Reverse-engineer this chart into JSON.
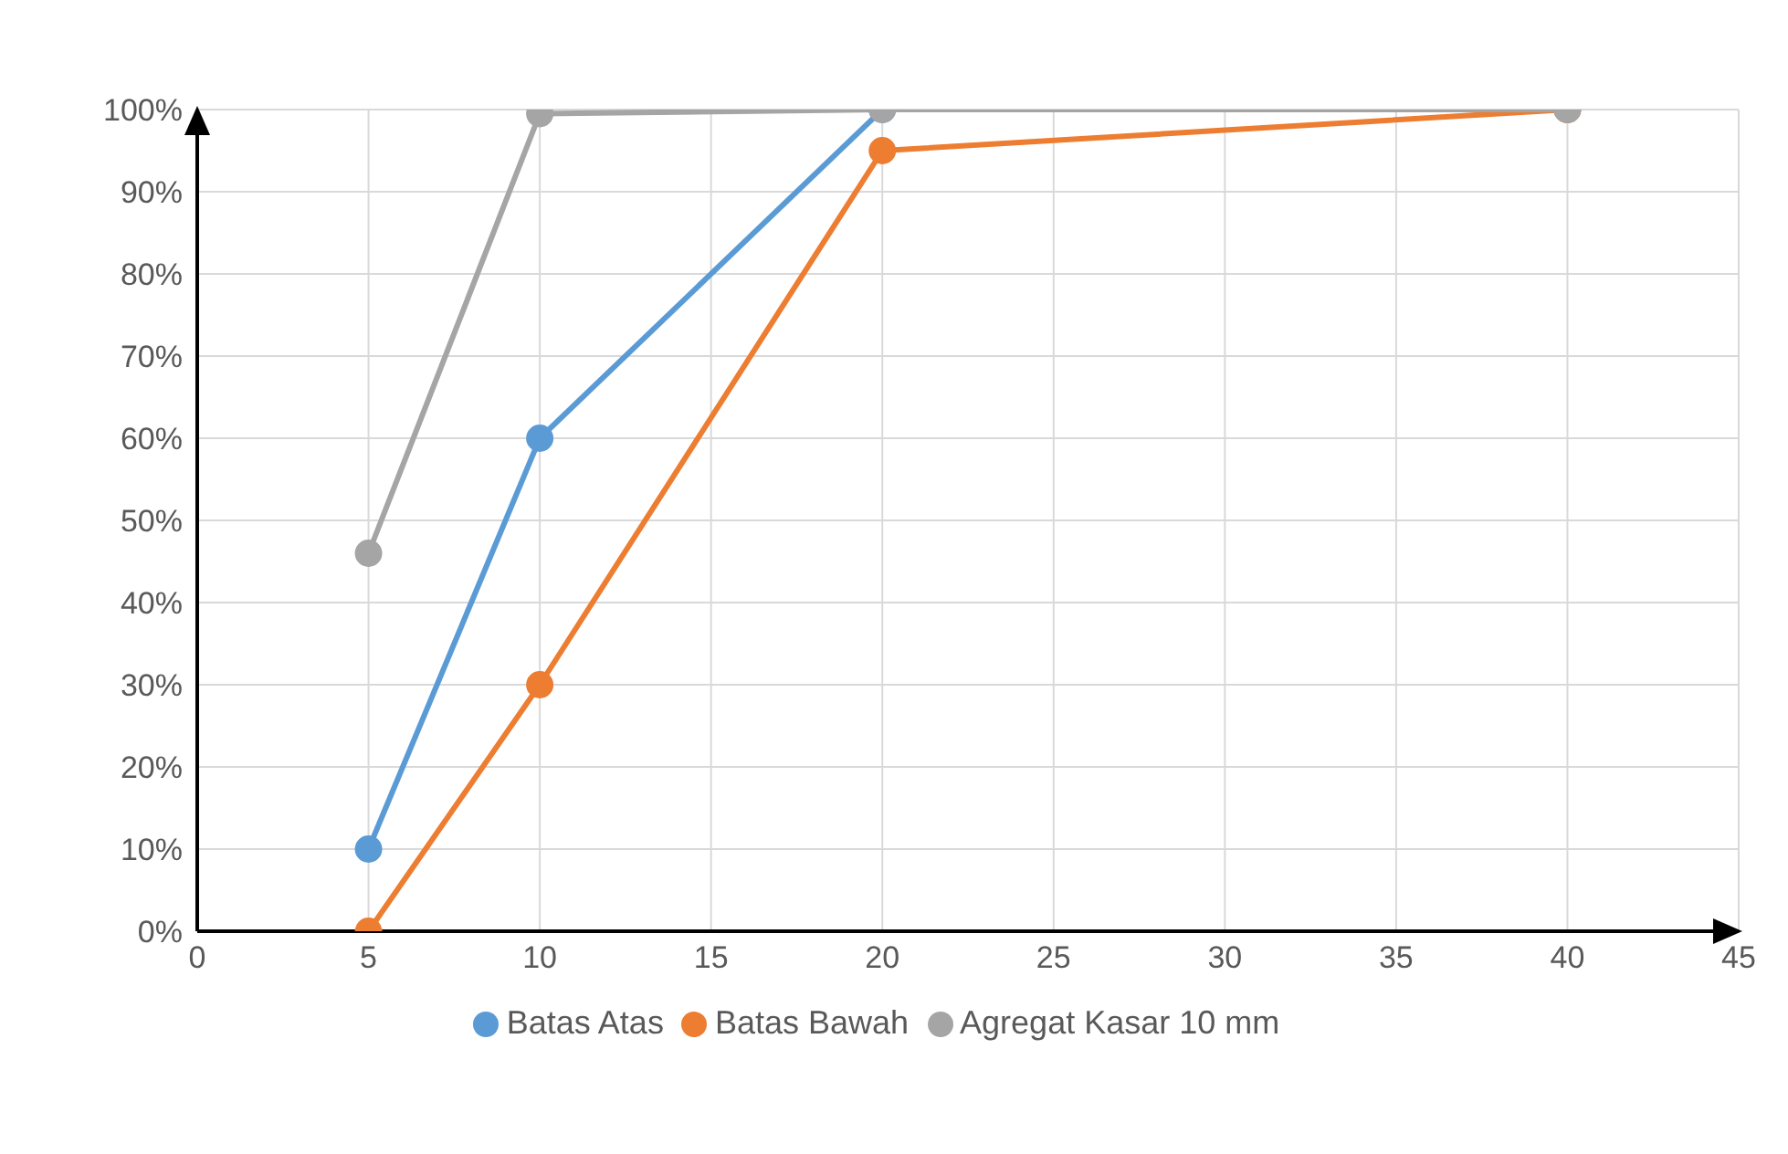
{
  "chart_data": {
    "type": "line",
    "x": [
      5,
      10,
      20,
      40
    ],
    "series": [
      {
        "name": "Batas Atas",
        "color": "#5b9bd5",
        "values": [
          10,
          60,
          100,
          100
        ]
      },
      {
        "name": "Batas Bawah",
        "color": "#ed7d31",
        "values": [
          0,
          30,
          95,
          100
        ]
      },
      {
        "name": "Agregat Kasar 10 mm",
        "color": "#a5a5a5",
        "values": [
          46,
          99.5,
          100,
          100
        ]
      }
    ],
    "xlim": [
      0,
      45
    ],
    "xticks": [
      0,
      5,
      10,
      15,
      20,
      25,
      30,
      35,
      40,
      45
    ],
    "ylim": [
      0,
      100
    ],
    "yticks": [
      {
        "value": 0,
        "label": "0%"
      },
      {
        "value": 10,
        "label": "10%"
      },
      {
        "value": 20,
        "label": "20%"
      },
      {
        "value": 30,
        "label": "30%"
      },
      {
        "value": 40,
        "label": "40%"
      },
      {
        "value": 50,
        "label": "50%"
      },
      {
        "value": 60,
        "label": "60%"
      },
      {
        "value": 70,
        "label": "70%"
      },
      {
        "value": 80,
        "label": "80%"
      },
      {
        "value": 90,
        "label": "90%"
      },
      {
        "value": 100,
        "label": "100%"
      }
    ],
    "grid": true,
    "legend": "bottom",
    "marker": "circle",
    "line_style": "solid"
  }
}
